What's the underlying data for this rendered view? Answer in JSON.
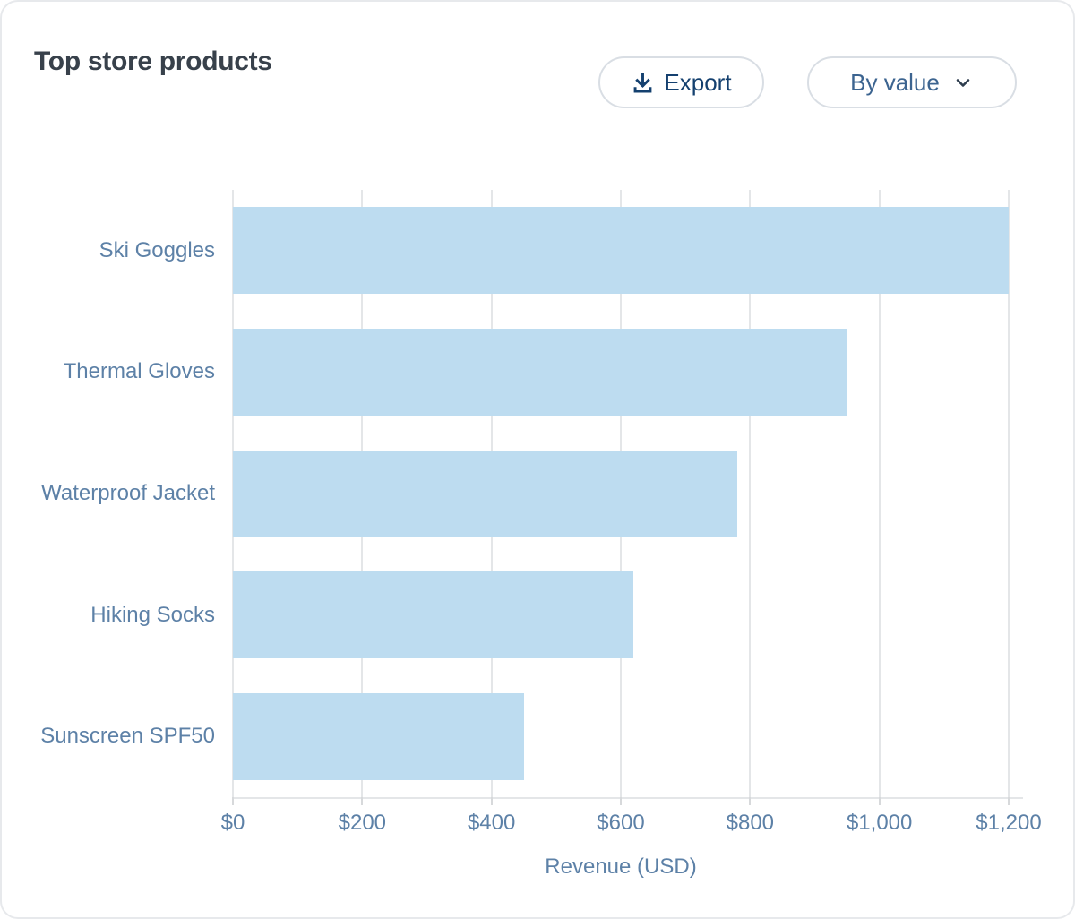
{
  "header": {
    "title": "Top store products",
    "export_label": "Export",
    "sort_label": "By value"
  },
  "colors": {
    "bar": "#bddcf0",
    "grid": "#e4e6e8",
    "axis_text": "#5d81a7",
    "title_text": "#38414b",
    "export_text": "#14406f",
    "sort_text": "#3c6490",
    "card_border": "#e7e9ec"
  },
  "chart_data": {
    "type": "bar",
    "orientation": "horizontal",
    "title": "Top store products",
    "categories": [
      "Ski Goggles",
      "Thermal Gloves",
      "Waterproof Jacket",
      "Hiking Socks",
      "Sunscreen SPF50"
    ],
    "values": [
      1200,
      950,
      780,
      620,
      450
    ],
    "xlabel": "Revenue (USD)",
    "ylabel": "",
    "xlim": [
      0,
      1200
    ],
    "xticks": [
      0,
      200,
      400,
      600,
      800,
      1000,
      1200
    ],
    "xtick_labels": [
      "$0",
      "$200",
      "$400",
      "$600",
      "$800",
      "$1,000",
      "$1,200"
    ],
    "grid": true,
    "legend": false
  }
}
